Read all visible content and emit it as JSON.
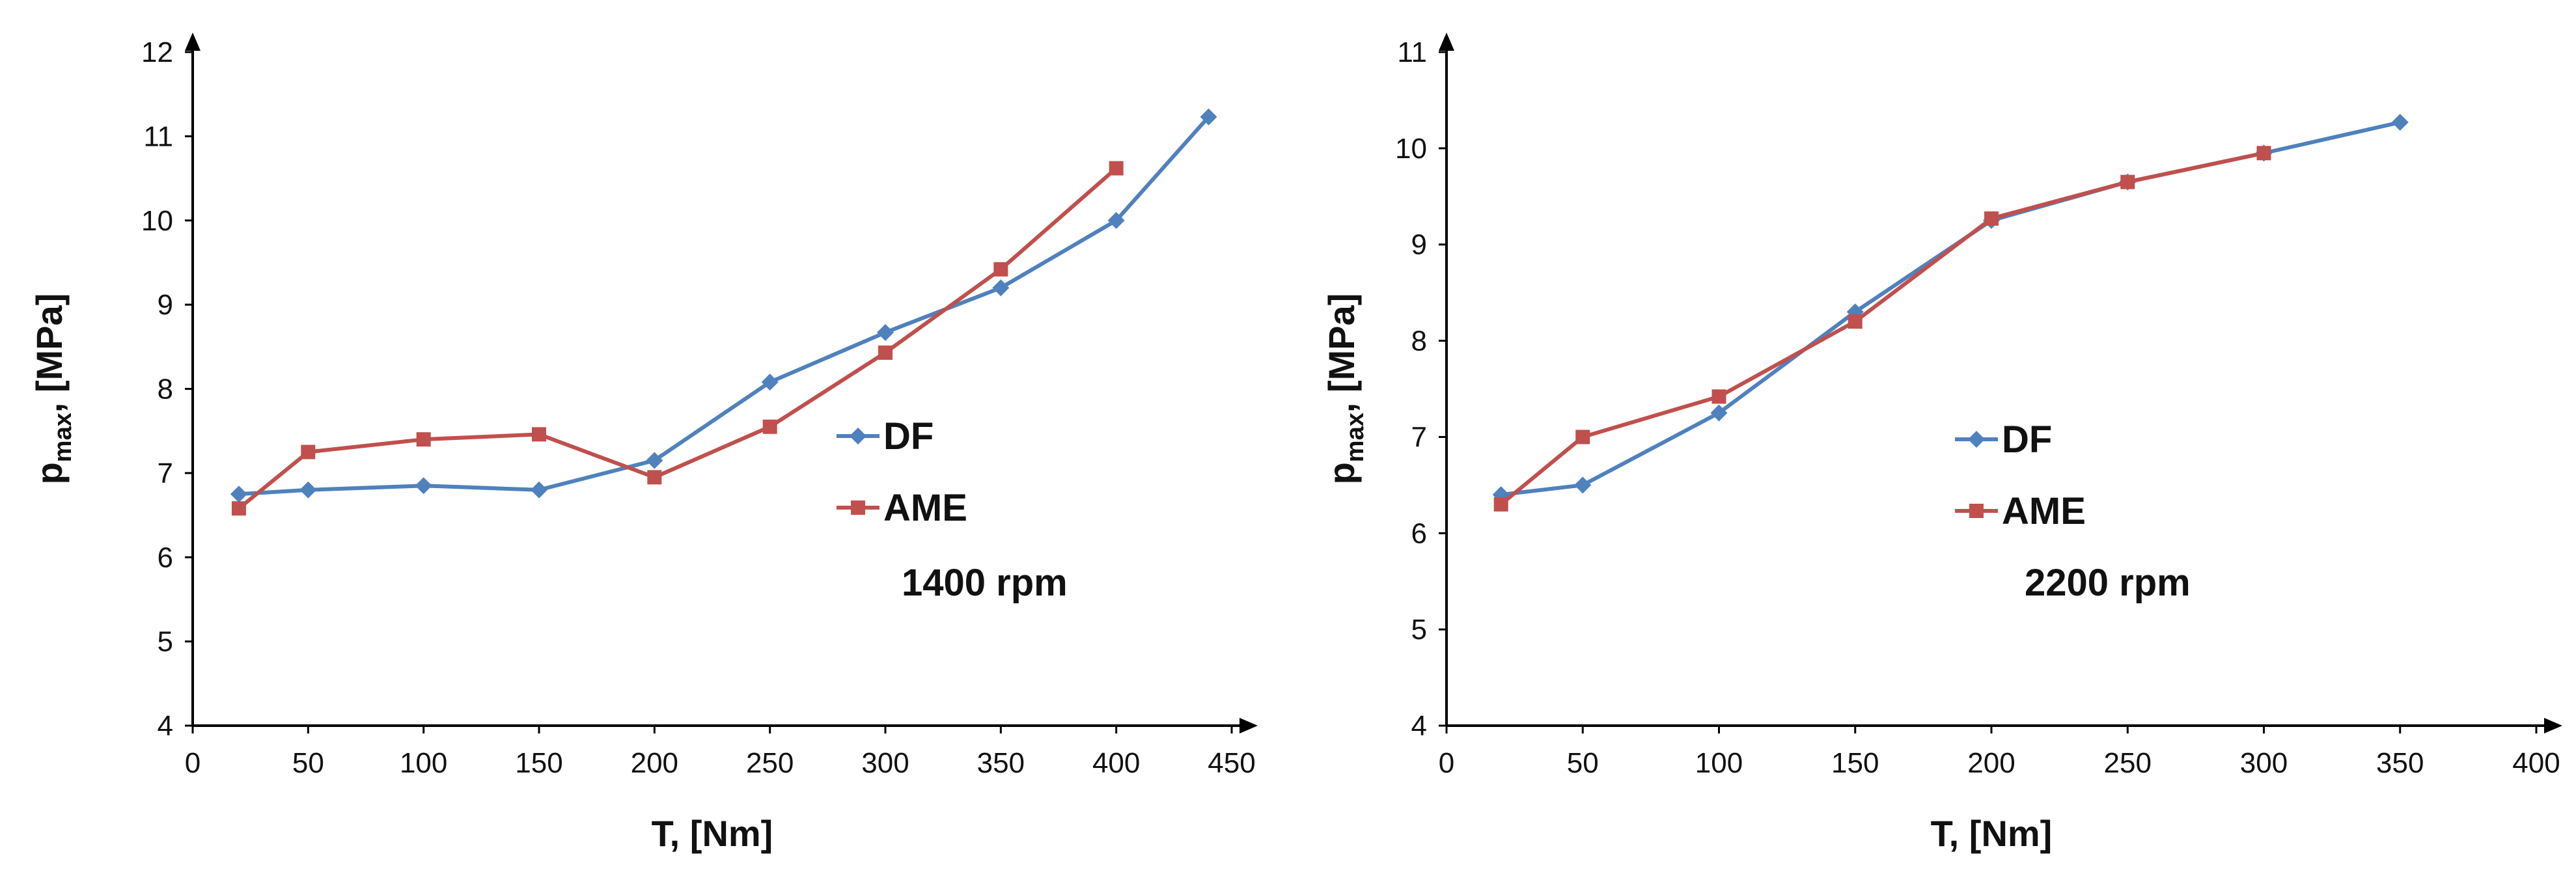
{
  "chart_data": [
    {
      "type": "line",
      "title": "",
      "xlabel": "T, [Nm]",
      "ylabel": {
        "main": "p",
        "sub": "max",
        "suffix": ", [MPa]"
      },
      "xlim": [
        0,
        450
      ],
      "ylim": [
        4,
        12
      ],
      "xticks": [
        0,
        50,
        100,
        150,
        200,
        250,
        300,
        350,
        400,
        450
      ],
      "yticks": [
        4,
        5,
        6,
        7,
        8,
        9,
        10,
        11,
        12
      ],
      "grid": false,
      "legend_position": "center-right",
      "annotation": "1400 rpm",
      "series": [
        {
          "name": "DF",
          "color": "#4F81BD",
          "marker": "diamond",
          "x": [
            20,
            50,
            100,
            150,
            200,
            250,
            300,
            350,
            400,
            440
          ],
          "y": [
            6.75,
            6.8,
            6.85,
            6.8,
            7.15,
            8.08,
            8.67,
            9.2,
            10.0,
            11.23
          ]
        },
        {
          "name": "AME",
          "color": "#C0504D",
          "marker": "square",
          "x": [
            20,
            50,
            100,
            150,
            200,
            250,
            300,
            350,
            400
          ],
          "y": [
            6.58,
            7.25,
            7.4,
            7.46,
            6.95,
            7.55,
            8.43,
            9.42,
            10.62
          ]
        }
      ]
    },
    {
      "type": "line",
      "title": "",
      "xlabel": "T, [Nm]",
      "ylabel": {
        "main": "p",
        "sub": "max",
        "suffix": ", [MPa]"
      },
      "xlim": [
        0,
        400
      ],
      "ylim": [
        4,
        11
      ],
      "xticks": [
        0,
        50,
        100,
        150,
        200,
        250,
        300,
        350,
        400
      ],
      "yticks": [
        4,
        5,
        6,
        7,
        8,
        9,
        10,
        11
      ],
      "grid": false,
      "legend_position": "center-right",
      "annotation": "2200 rpm",
      "series": [
        {
          "name": "DF",
          "color": "#4F81BD",
          "marker": "diamond",
          "x": [
            20,
            50,
            100,
            150,
            200,
            250,
            300,
            350
          ],
          "y": [
            6.4,
            6.5,
            7.25,
            8.3,
            9.25,
            9.65,
            9.95,
            10.27
          ]
        },
        {
          "name": "AME",
          "color": "#C0504D",
          "marker": "square",
          "x": [
            20,
            50,
            100,
            150,
            200,
            250,
            300
          ],
          "y": [
            6.3,
            7.0,
            7.42,
            8.2,
            9.27,
            9.65,
            9.95
          ]
        }
      ]
    }
  ]
}
